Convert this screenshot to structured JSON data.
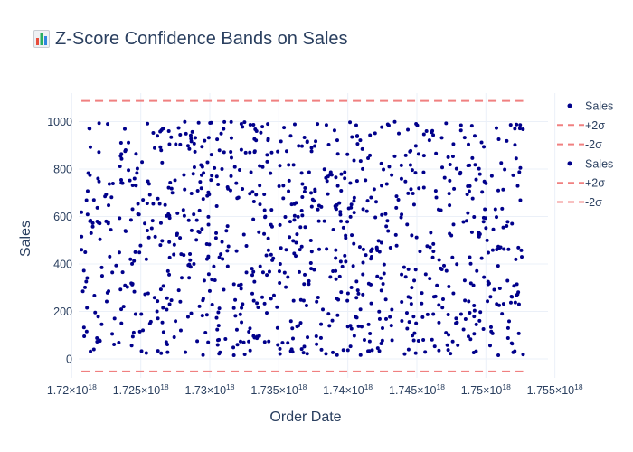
{
  "title": "Z-Score Confidence Bands on Sales",
  "title_icon": "bar-chart-emoji-icon",
  "colors": {
    "points": "#00008b",
    "band_line": "#f08080",
    "grid": "#ebf0f8",
    "text": "#2a3f5f"
  },
  "chart_data": {
    "type": "scatter",
    "title": "Z-Score Confidence Bands on Sales",
    "xlabel": "Order Date",
    "ylabel": "Sales",
    "x_scale_note": "time in nanoseconds since epoch",
    "xlim": [
      1.7205e+18,
      1.7545e+18
    ],
    "ylim": [
      -80,
      1120
    ],
    "x_ticks": [
      {
        "value": 1.72e+18,
        "mantissa": "1.72",
        "exp": "18"
      },
      {
        "value": 1.725e+18,
        "mantissa": "1.725",
        "exp": "18"
      },
      {
        "value": 1.73e+18,
        "mantissa": "1.73",
        "exp": "18"
      },
      {
        "value": 1.735e+18,
        "mantissa": "1.735",
        "exp": "18"
      },
      {
        "value": 1.74e+18,
        "mantissa": "1.74",
        "exp": "18"
      },
      {
        "value": 1.745e+18,
        "mantissa": "1.745",
        "exp": "18"
      },
      {
        "value": 1.75e+18,
        "mantissa": "1.75",
        "exp": "18"
      },
      {
        "value": 1.755e+18,
        "mantissa": "1.755",
        "exp": "18"
      }
    ],
    "y_ticks": [
      0,
      200,
      400,
      600,
      800,
      1000
    ],
    "grid": true,
    "legend_position": "right",
    "bands": {
      "upper": 1087,
      "lower": -53,
      "x_range": [
        1.7207e+18,
        1.7527e+18
      ]
    },
    "legend": [
      {
        "label": "Sales",
        "kind": "marker"
      },
      {
        "label": "+2σ",
        "kind": "dash"
      },
      {
        "label": "-2σ",
        "kind": "dash"
      },
      {
        "label": "Sales",
        "kind": "marker"
      },
      {
        "label": "+2σ",
        "kind": "dash"
      },
      {
        "label": "-2σ",
        "kind": "dash"
      }
    ],
    "series": [
      {
        "name": "Sales",
        "point_count": 1000,
        "x_range": [
          1.7207e+18,
          1.7527e+18
        ],
        "y_range": [
          15,
          1000
        ],
        "sample_points": [
          [
            1.7207e+18,
            618
          ],
          [
            1.7208e+18,
            285
          ],
          [
            1.7209e+18,
            95
          ],
          [
            1.7211e+18,
            215
          ],
          [
            1.7213e+18,
            970
          ],
          [
            1.7214e+18,
            530
          ],
          [
            1.7216e+18,
            40
          ],
          [
            1.7219e+18,
            760
          ],
          [
            1.7222e+18,
            350
          ],
          [
            1.7226e+18,
            990
          ],
          [
            1.7231e+18,
            170
          ],
          [
            1.7239e+18,
            880
          ],
          [
            1.7246e+18,
            450
          ],
          [
            1.7254e+18,
            25
          ],
          [
            1.7262e+18,
            940
          ],
          [
            1.727e+18,
            610
          ],
          [
            1.7279e+18,
            120
          ],
          [
            1.7288e+18,
            780
          ],
          [
            1.7296e+18,
            330
          ],
          [
            1.7301e+18,
            995
          ],
          [
            1.7312e+18,
            540
          ],
          [
            1.732e+18,
            60
          ],
          [
            1.7329e+18,
            870
          ],
          [
            1.7338e+18,
            260
          ],
          [
            1.7342e+18,
            990
          ],
          [
            1.7351e+18,
            400
          ],
          [
            1.736e+18,
            30
          ],
          [
            1.7369e+18,
            720
          ],
          [
            1.7378e+18,
            990
          ],
          [
            1.7386e+18,
            190
          ],
          [
            1.7395e+18,
            580
          ],
          [
            1.7403e+18,
            935
          ],
          [
            1.7412e+18,
            80
          ],
          [
            1.7421e+18,
            470
          ],
          [
            1.743e+18,
            810
          ],
          [
            1.7439e+18,
            240
          ],
          [
            1.7448e+18,
            650
          ],
          [
            1.7457e+18,
            960
          ],
          [
            1.7466e+18,
            35
          ],
          [
            1.7475e+18,
            520
          ],
          [
            1.7482e+18,
            985
          ],
          [
            1.7491e+18,
            310
          ],
          [
            1.75e+18,
            740
          ],
          [
            1.7509e+18,
            15
          ],
          [
            1.7515e+18,
            560
          ],
          [
            1.7521e+18,
            970
          ],
          [
            1.7524e+18,
            230
          ],
          [
            1.7526e+18,
            430
          ]
        ]
      }
    ]
  }
}
